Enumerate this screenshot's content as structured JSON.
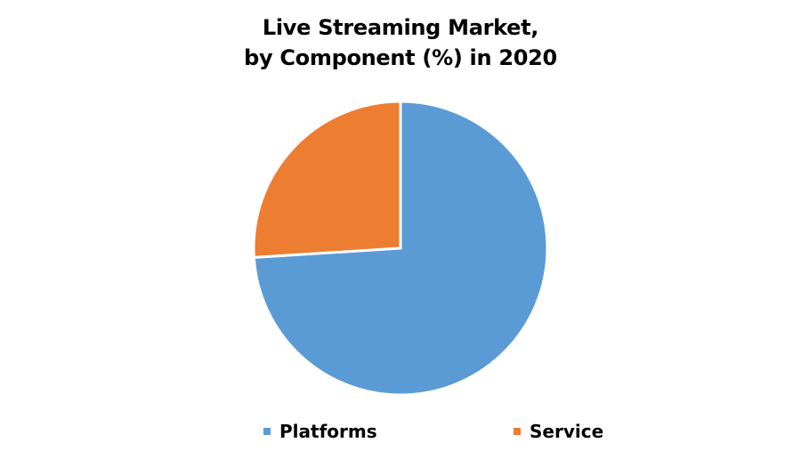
{
  "title": {
    "line1": "Live Streaming Market,",
    "line2": "by Component (%) in 2020"
  },
  "legend": [
    {
      "label": "Platforms",
      "color": "#5B9BD5"
    },
    {
      "label": "Service",
      "color": "#ED7D31"
    }
  ],
  "chart_data": {
    "type": "pie",
    "title": "Live Streaming Market, by Component (%) in 2020",
    "categories": [
      "Platforms",
      "Service"
    ],
    "values": [
      74,
      26
    ],
    "colors": [
      "#5B9BD5",
      "#ED7D31"
    ],
    "start_angle_deg": 0,
    "direction": "clockwise",
    "legend_position": "bottom",
    "data_labels": false
  }
}
